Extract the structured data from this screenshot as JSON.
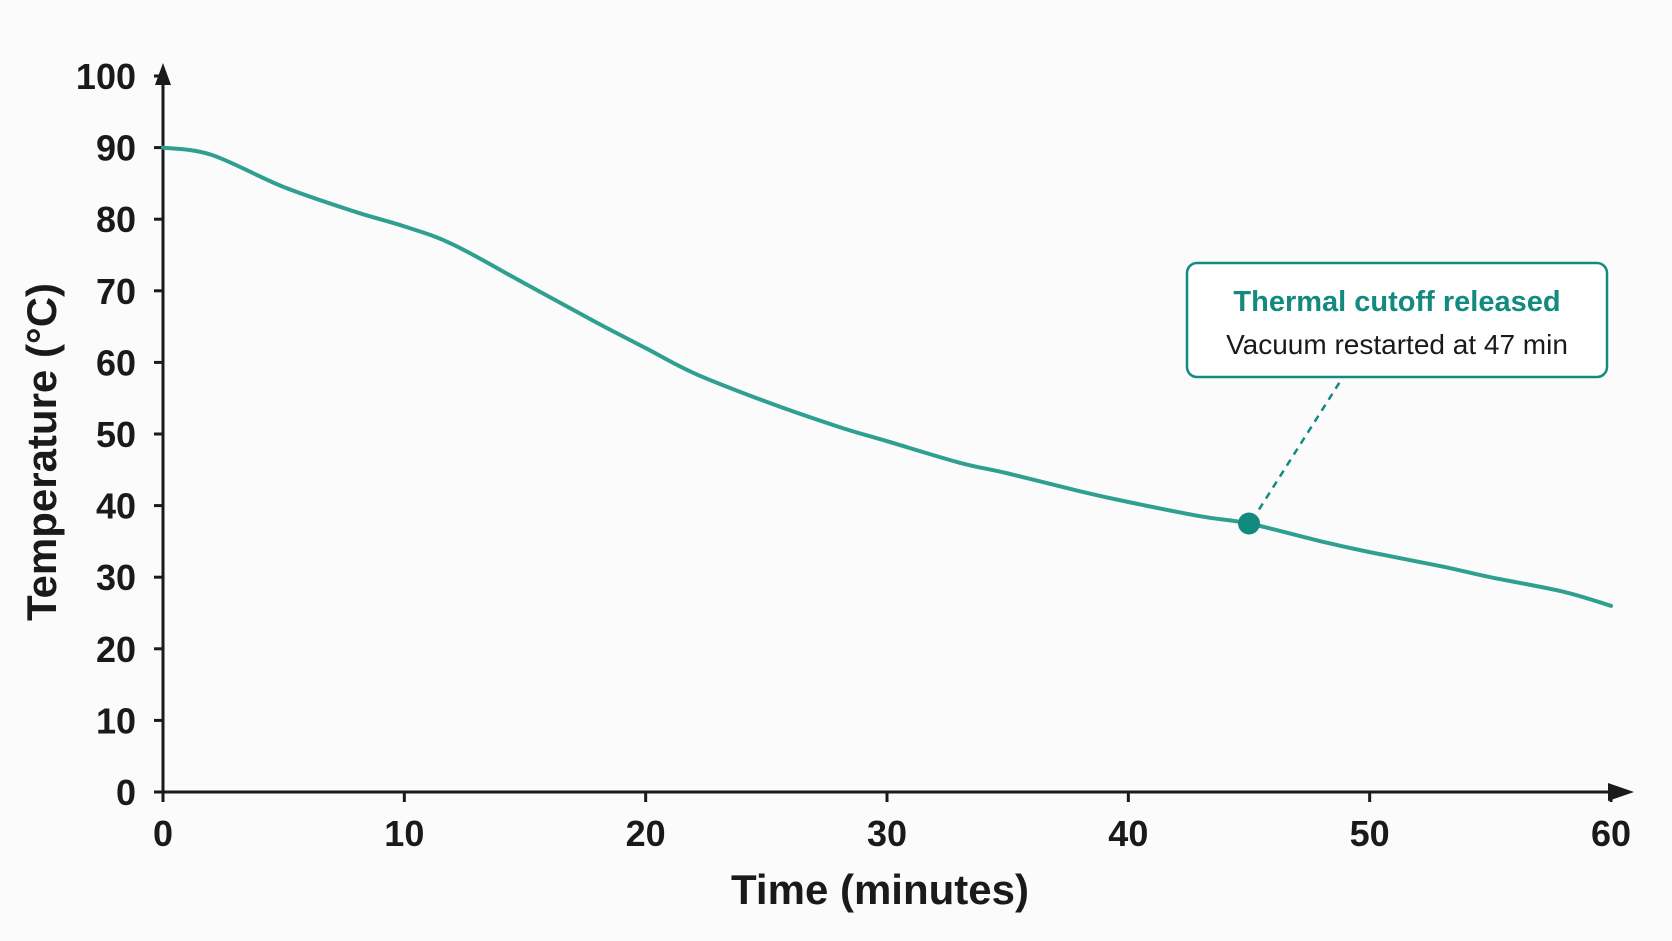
{
  "chart_data": {
    "type": "line",
    "title": "",
    "xlabel": "Time (minutes)",
    "ylabel": "Temperature (°C)",
    "xlim": [
      0,
      60
    ],
    "ylim": [
      0,
      100
    ],
    "xticks": [
      0,
      10,
      20,
      30,
      40,
      50,
      60
    ],
    "yticks": [
      0,
      10,
      20,
      30,
      40,
      50,
      60,
      70,
      80,
      90,
      100
    ],
    "grid": false,
    "legend": "none",
    "colors": {
      "line": "#2fa08f",
      "accent": "#138a80",
      "axis": "#1a1a1a"
    },
    "series": [
      {
        "x": [
          0,
          2,
          5,
          8,
          10,
          12,
          15,
          18,
          20,
          22,
          25,
          28,
          30,
          33,
          35,
          38,
          40,
          43,
          45,
          48,
          50,
          53,
          55,
          58,
          60
        ],
        "y": [
          90,
          89,
          84.5,
          81,
          79,
          76.5,
          71,
          65.5,
          62,
          58.5,
          54.5,
          51,
          49,
          46,
          44.5,
          42,
          40.5,
          38.5,
          37.5,
          35,
          33.5,
          31.5,
          30,
          28,
          26
        ]
      }
    ],
    "annotation": {
      "title": "Thermal cutoff released",
      "text": "Vacuum restarted at 47 min",
      "marker": {
        "x": 45,
        "y": 37.5
      }
    }
  }
}
